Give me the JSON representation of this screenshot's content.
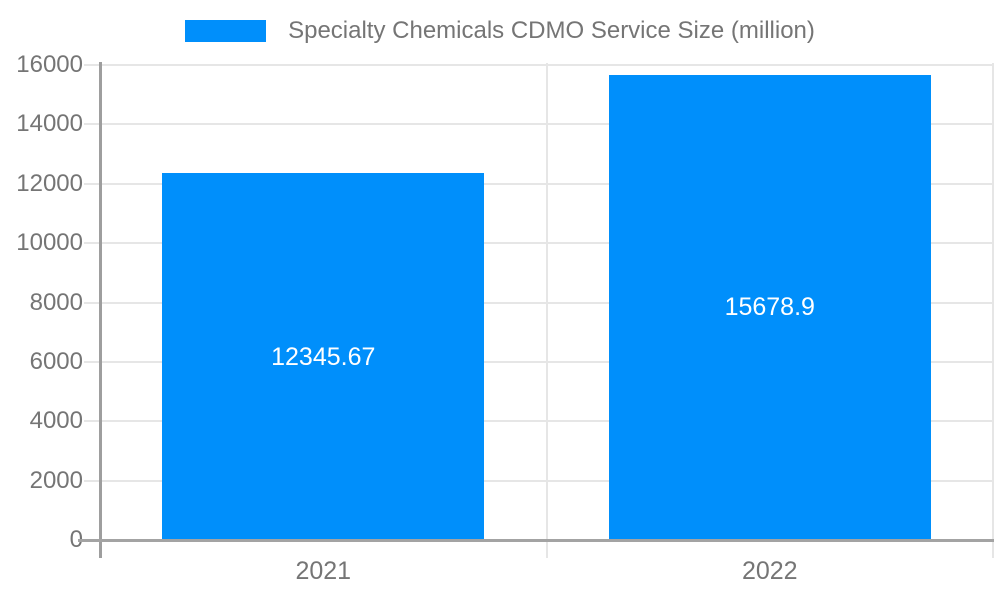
{
  "chart_data": {
    "type": "bar",
    "series_name": "Specialty Chemicals CDMO Service Size (million)",
    "categories": [
      "2021",
      "2022"
    ],
    "values": [
      12345.67,
      15678.9
    ],
    "value_labels": [
      "12345.67",
      "15678.9"
    ],
    "title": "",
    "xlabel": "",
    "ylabel": "",
    "ylim": [
      0,
      16000
    ],
    "ytick_step": 2000,
    "ytick_labels": [
      "0",
      "2000",
      "4000",
      "6000",
      "8000",
      "10000",
      "12000",
      "14000",
      "16000"
    ],
    "grid": true,
    "legend_position": "top",
    "bar_color": "#008FFB",
    "gridline_color": "#e6e6e6",
    "axis_line_color": "#a3a3a3",
    "y_axis_line_color": "#9e9e9e",
    "text_color": "#757575",
    "value_label_color": "#ffffff",
    "background_color": "#ffffff"
  }
}
